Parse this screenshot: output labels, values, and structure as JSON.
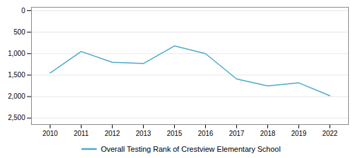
{
  "chart_data": {
    "type": "line",
    "categories": [
      "2010",
      "2011",
      "2012",
      "2013",
      "2015",
      "2016",
      "2017",
      "2018",
      "2019",
      "2022"
    ],
    "series": [
      {
        "name": "Overall Testing Rank of Crestview Elementary School",
        "color": "#4ba9cc",
        "values": [
          1450,
          950,
          1200,
          1230,
          820,
          1000,
          1590,
          1750,
          1680,
          1980
        ]
      }
    ],
    "ylim": [
      2650,
      -80
    ],
    "yticks": [
      0,
      500,
      1000,
      1500,
      2000,
      2500
    ],
    "grid": true,
    "legend": "bottom"
  }
}
